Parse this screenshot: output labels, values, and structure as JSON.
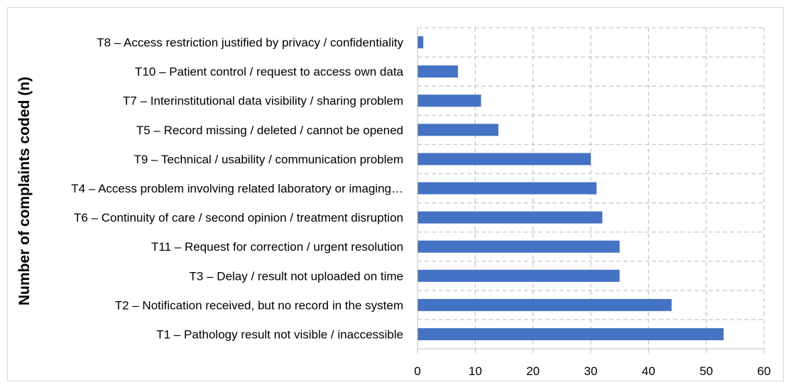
{
  "chart_data": {
    "type": "bar",
    "orientation": "horizontal",
    "title": "",
    "xlabel": "",
    "ylabel": "Number of complaints coded (n)",
    "categories": [
      "T8 – Access restriction justified by privacy / confidentiality",
      "T10 – Patient control / request to access own data",
      "T7 – Interinstitutional data visibility / sharing problem",
      "T5 – Record missing / deleted / cannot be opened",
      "T9 – Technical / usability / communication problem",
      "T4 – Access problem involving related laboratory or imaging…",
      "T6 – Continuity of care / second opinion / treatment disruption",
      "T11 – Request for correction / urgent resolution",
      "T3 – Delay / result not uploaded on time",
      "T2 – Notification received, but no record in the system",
      "T1 – Pathology result not visible / inaccessible"
    ],
    "values": [
      1,
      7,
      11,
      14,
      30,
      31,
      32,
      35,
      35,
      44,
      53
    ],
    "xlim": [
      0,
      60
    ],
    "xticks": [
      "0",
      "10",
      "20",
      "30",
      "40",
      "50",
      "60"
    ],
    "grid": true,
    "grid_style": "dashed",
    "legend": "none",
    "colors": {
      "bar": "#4472c4",
      "grid": "#c8c8c8",
      "axis": "#bfbfbf",
      "text": "#000000"
    }
  }
}
